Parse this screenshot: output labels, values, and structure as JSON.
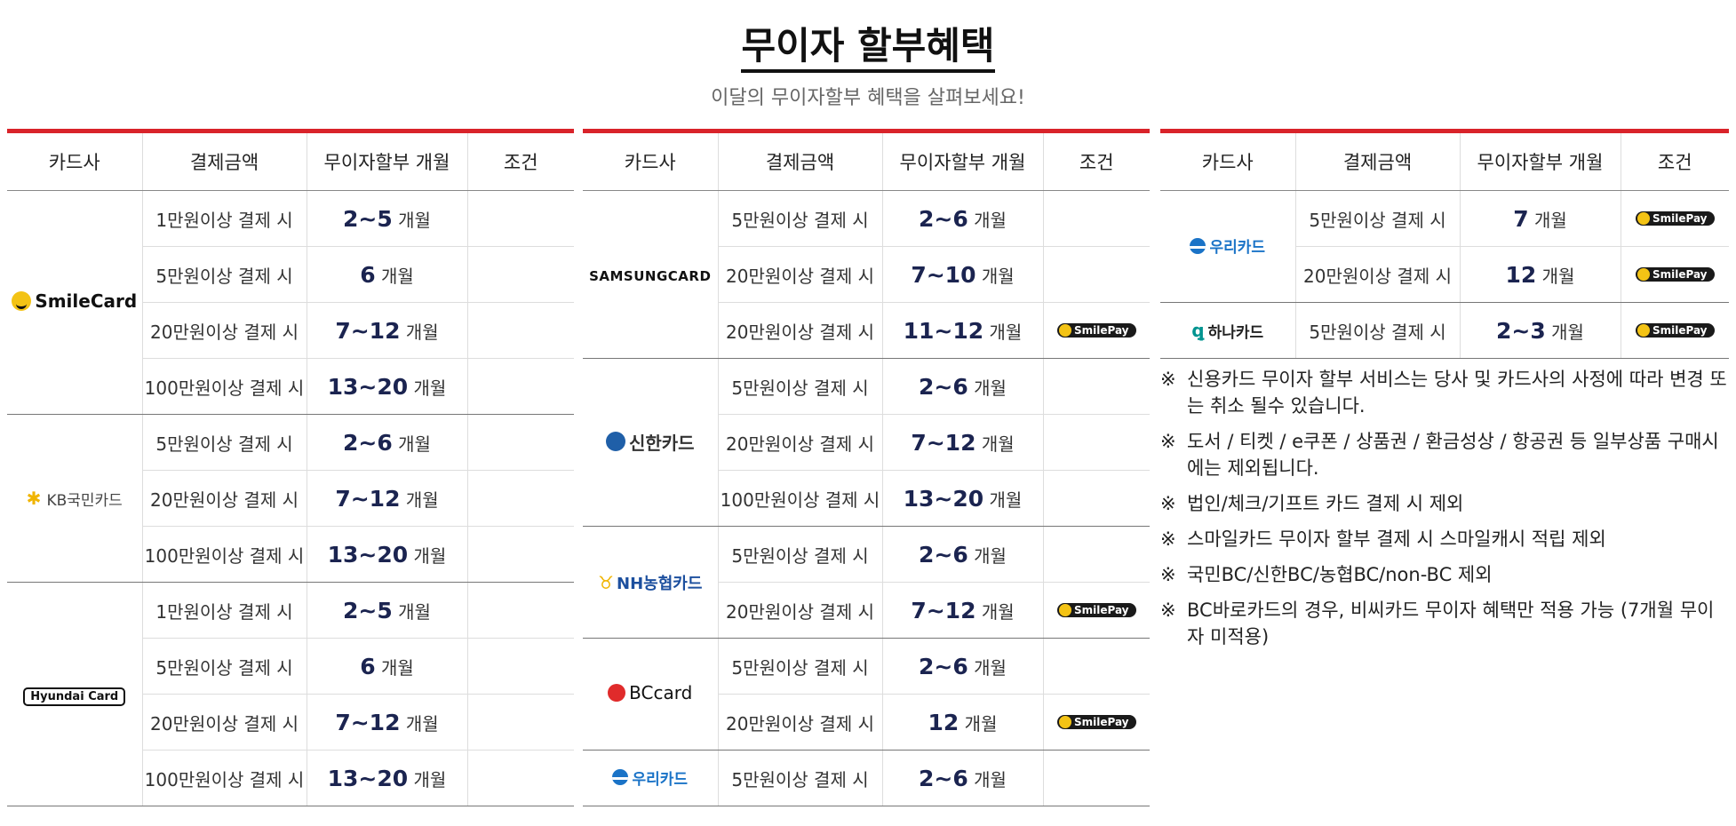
{
  "title": "무이자 할부혜택",
  "subtitle": "이달의 무이자할부 혜택을 살펴보세요!",
  "headers": {
    "card": "카드사",
    "amount": "결제금액",
    "months": "무이자할부 개월",
    "condition": "조건"
  },
  "unit": "개월",
  "condition_badge": "SmilePay",
  "colors": {
    "accent_line": "#d9232a",
    "month_number": "#1b2450"
  },
  "logos": {
    "smilecard": "SmileCard",
    "kb": "KB국민카드",
    "hyundai": "Hyundai Card",
    "samsung": "SAMSUNGCARD",
    "shinhan": "신한카드",
    "nh": "NH농협카드",
    "bc": "BCcard",
    "woori": "우리카드",
    "hana": "하나카드"
  },
  "table1": {
    "smile": [
      {
        "amount": "1만원이상 결제 시",
        "months": "2~5"
      },
      {
        "amount": "5만원이상 결제 시",
        "months": "6"
      },
      {
        "amount": "20만원이상 결제 시",
        "months": "7~12"
      },
      {
        "amount": "100만원이상 결제 시",
        "months": "13~20"
      }
    ],
    "kb": [
      {
        "amount": "5만원이상 결제 시",
        "months": "2~6"
      },
      {
        "amount": "20만원이상 결제 시",
        "months": "7~12"
      },
      {
        "amount": "100만원이상 결제 시",
        "months": "13~20"
      }
    ],
    "hyundai": [
      {
        "amount": "1만원이상 결제 시",
        "months": "2~5"
      },
      {
        "amount": "5만원이상 결제 시",
        "months": "6"
      },
      {
        "amount": "20만원이상 결제 시",
        "months": "7~12"
      },
      {
        "amount": "100만원이상 결제 시",
        "months": "13~20"
      }
    ]
  },
  "table2": {
    "samsung": [
      {
        "amount": "5만원이상 결제 시",
        "months": "2~6"
      },
      {
        "amount": "20만원이상 결제 시",
        "months": "7~10"
      },
      {
        "amount": "20만원이상 결제 시",
        "months": "11~12"
      }
    ],
    "shinhan": [
      {
        "amount": "5만원이상 결제 시",
        "months": "2~6"
      },
      {
        "amount": "20만원이상 결제 시",
        "months": "7~12"
      },
      {
        "amount": "100만원이상 결제 시",
        "months": "13~20"
      }
    ],
    "nh": [
      {
        "amount": "5만원이상 결제 시",
        "months": "2~6"
      },
      {
        "amount": "20만원이상 결제 시",
        "months": "7~12"
      }
    ],
    "bc": [
      {
        "amount": "5만원이상 결제 시",
        "months": "2~6"
      },
      {
        "amount": "20만원이상 결제 시",
        "months": "12"
      }
    ],
    "woori": [
      {
        "amount": "5만원이상 결제 시",
        "months": "2~6"
      }
    ]
  },
  "table3": {
    "woori": [
      {
        "amount": "5만원이상 결제 시",
        "months": "7"
      },
      {
        "amount": "20만원이상 결제 시",
        "months": "12"
      }
    ],
    "hana": [
      {
        "amount": "5만원이상 결제 시",
        "months": "2~3"
      }
    ]
  },
  "notes_mark": "※",
  "notes": [
    "신용카드 무이자 할부 서비스는 당사 및 카드사의 사정에 따라 변경 또는 취소 될수 있습니다.",
    "도서 / 티켓 / e쿠폰 / 상품권 / 환금성상 / 항공권 등 일부상품 구매시에는 제외됩니다.",
    "법인/체크/기프트 카드 결제 시 제외",
    "스마일카드 무이자 할부 결제 시 스마일캐시 적립 제외",
    "국민BC/신한BC/농협BC/non-BC 제외",
    "BC바로카드의 경우, 비씨카드 무이자 혜택만 적용 가능 (7개월 무이자 미적용)"
  ]
}
